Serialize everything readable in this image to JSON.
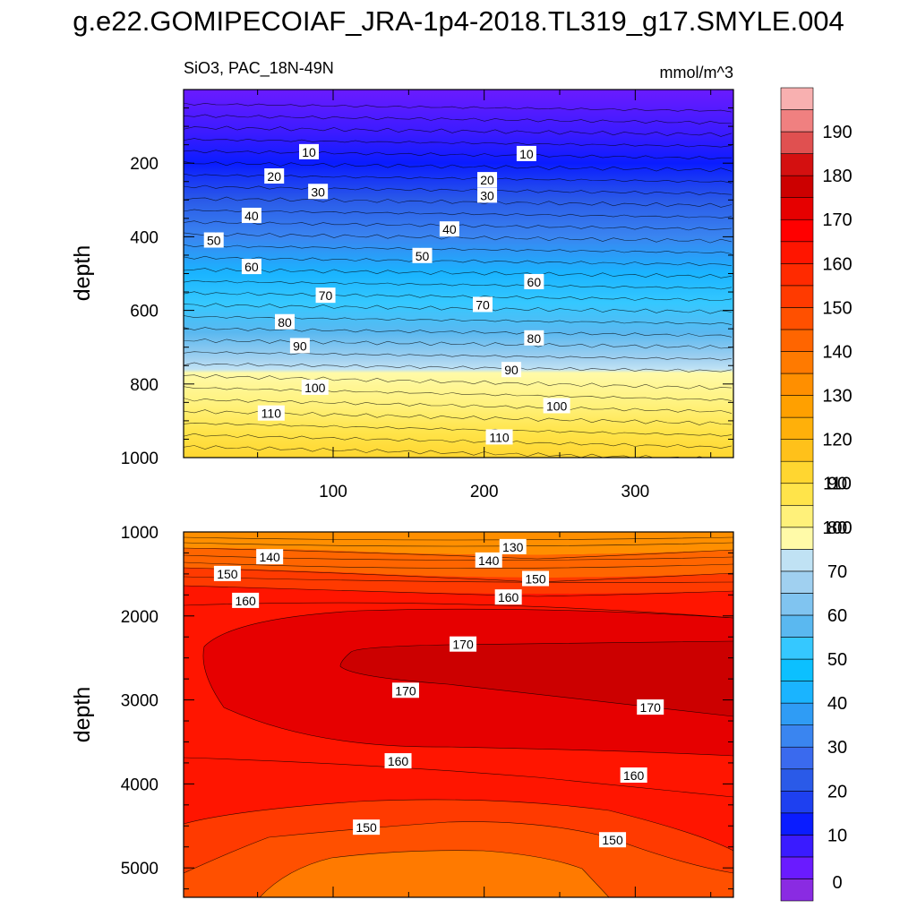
{
  "title": "g.e22.GOMIPECOIAF_JRA-1p4-2018.TL319_g17.SMYLE.004",
  "chart_data": {
    "type": "contour",
    "variable": "SiO3, PAC_18N-49N",
    "units": "mmol/m^3",
    "x_ticks": [
      100,
      200,
      300
    ],
    "x_range": [
      1,
      365
    ],
    "grid": false,
    "colorbar": {
      "placement": "right",
      "labels": [
        0,
        10,
        20,
        30,
        40,
        50,
        60,
        70,
        80,
        90,
        100,
        110,
        120,
        130,
        140,
        150,
        160,
        170,
        180,
        190
      ],
      "colors": [
        "#8a2be2",
        "#6a1bff",
        "#3a1bff",
        "#0a1cff",
        "#1e40f0",
        "#2a5ae8",
        "#3a6aee",
        "#3a85f0",
        "#2f9cf5",
        "#1ab4ff",
        "#0cc0ff",
        "#35c8ff",
        "#5ab8f0",
        "#80c4f0",
        "#a0d0f0",
        "#c0e2f4",
        "#fffaa8",
        "#fff17a",
        "#ffe44a",
        "#ffd630",
        "#ffc11a",
        "#ffb00a",
        "#ffa000",
        "#ff8f00",
        "#ff7a00",
        "#ff6500",
        "#ff5000",
        "#ff3a00",
        "#ff2a00",
        "#ff1500",
        "#ff0000",
        "#e60000",
        "#cc0000",
        "#d41010",
        "#e05050",
        "#f08080",
        "#f8b0b0"
      ]
    },
    "panels": [
      {
        "ylabel": "depth",
        "y_range": [
          0,
          1000
        ],
        "y_ticks": [
          200,
          400,
          600,
          800,
          1000
        ],
        "contour_labels": [
          {
            "text": "10",
            "x": 84,
            "y": 170
          },
          {
            "text": "10",
            "x": 228,
            "y": 175
          },
          {
            "text": "20",
            "x": 61,
            "y": 236
          },
          {
            "text": "20",
            "x": 202,
            "y": 246
          },
          {
            "text": "30",
            "x": 90,
            "y": 278
          },
          {
            "text": "30",
            "x": 202,
            "y": 288
          },
          {
            "text": "40",
            "x": 46,
            "y": 343
          },
          {
            "text": "40",
            "x": 177,
            "y": 380
          },
          {
            "text": "50",
            "x": 21,
            "y": 410
          },
          {
            "text": "50",
            "x": 159,
            "y": 452
          },
          {
            "text": "60",
            "x": 46,
            "y": 482
          },
          {
            "text": "60",
            "x": 233,
            "y": 523
          },
          {
            "text": "70",
            "x": 95,
            "y": 560
          },
          {
            "text": "70",
            "x": 199,
            "y": 585
          },
          {
            "text": "80",
            "x": 68,
            "y": 632
          },
          {
            "text": "80",
            "x": 233,
            "y": 676
          },
          {
            "text": "90",
            "x": 78,
            "y": 697
          },
          {
            "text": "90",
            "x": 218,
            "y": 762
          },
          {
            "text": "100",
            "x": 88,
            "y": 810
          },
          {
            "text": "100",
            "x": 248,
            "y": 860
          },
          {
            "text": "110",
            "x": 59,
            "y": 880
          },
          {
            "text": "110",
            "x": 210,
            "y": 945
          }
        ]
      },
      {
        "ylabel": "depth",
        "y_range": [
          1000,
          5350
        ],
        "y_ticks": [
          1000,
          2000,
          3000,
          4000,
          5000
        ],
        "contour_labels": [
          {
            "text": "130",
            "x": 219,
            "y": 1180
          },
          {
            "text": "140",
            "x": 58,
            "y": 1300
          },
          {
            "text": "140",
            "x": 203,
            "y": 1340
          },
          {
            "text": "150",
            "x": 30,
            "y": 1500
          },
          {
            "text": "150",
            "x": 234,
            "y": 1560
          },
          {
            "text": "160",
            "x": 42,
            "y": 1820
          },
          {
            "text": "160",
            "x": 216,
            "y": 1780
          },
          {
            "text": "170",
            "x": 186,
            "y": 2340
          },
          {
            "text": "170",
            "x": 148,
            "y": 2890
          },
          {
            "text": "170",
            "x": 310,
            "y": 3090
          },
          {
            "text": "160",
            "x": 143,
            "y": 3730
          },
          {
            "text": "160",
            "x": 299,
            "y": 3900
          },
          {
            "text": "150",
            "x": 122,
            "y": 4520
          },
          {
            "text": "150",
            "x": 285,
            "y": 4670
          }
        ]
      }
    ]
  }
}
